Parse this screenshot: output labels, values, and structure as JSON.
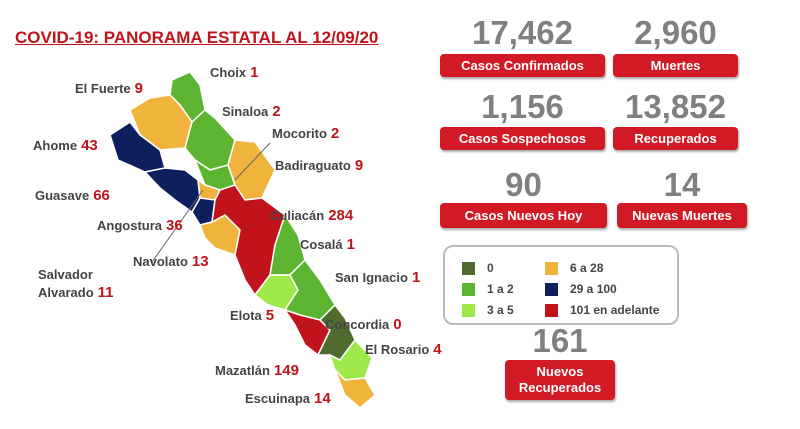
{
  "header": {
    "title": "COVID-19: PANORAMA ESTATAL AL 12/09/20"
  },
  "municipalities": [
    {
      "name": "Choix",
      "value": 1
    },
    {
      "name": "El Fuerte",
      "value": 9
    },
    {
      "name": "Sinaloa",
      "value": 2
    },
    {
      "name": "Ahome",
      "value": 43
    },
    {
      "name": "Mocorito",
      "value": 2
    },
    {
      "name": "Badiraguato",
      "value": 9
    },
    {
      "name": "Guasave",
      "value": 66
    },
    {
      "name": "Culiacán",
      "value": 284
    },
    {
      "name": "Angostura",
      "value": 36
    },
    {
      "name": "Cosalá",
      "value": 1
    },
    {
      "name": "Salvador Alvarado",
      "value": 11
    },
    {
      "name": "Navolato",
      "value": 13
    },
    {
      "name": "San Ignacio",
      "value": 1
    },
    {
      "name": "Elota",
      "value": 5
    },
    {
      "name": "Concordia",
      "value": 0
    },
    {
      "name": "El Rosario",
      "value": 4
    },
    {
      "name": "Mazatlán",
      "value": 149
    },
    {
      "name": "Escuinapa",
      "value": 14
    }
  ],
  "stats": [
    {
      "value": "17,462",
      "label": "Casos Confirmados"
    },
    {
      "value": "2,960",
      "label": "Muertes"
    },
    {
      "value": "1,156",
      "label": "Casos Sospechosos"
    },
    {
      "value": "13,852",
      "label": "Recuperados"
    },
    {
      "value": "90",
      "label": "Casos Nuevos Hoy"
    },
    {
      "value": "14",
      "label": "Nuevas Muertes"
    },
    {
      "value": "161",
      "label": "Nuevos Recuperados"
    }
  ],
  "legend": [
    {
      "label": "0",
      "color": "#4f6b2e"
    },
    {
      "label": "6 a 28",
      "color": "#f0b43c"
    },
    {
      "label": "1 a 2",
      "color": "#5cb431"
    },
    {
      "label": "29 a 100",
      "color": "#0d1f5c"
    },
    {
      "label": "3 a 5",
      "color": "#9ee84a"
    },
    {
      "label": "101 en adelante",
      "color": "#c0131b"
    }
  ]
}
